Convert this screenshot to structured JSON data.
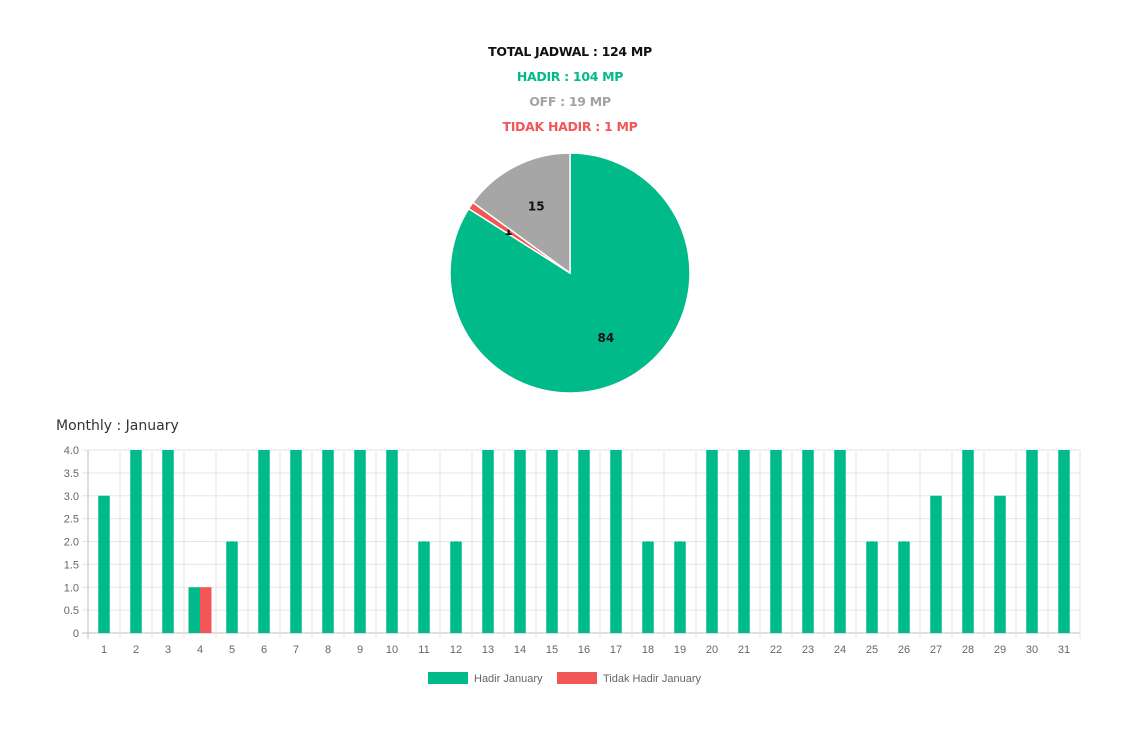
{
  "summary": {
    "total": "TOTAL JADWAL : 124 MP",
    "hadir": "HADIR : 104 MP",
    "off": "OFF : 19 MP",
    "tidak_hadir": "TIDAK HADIR : 1 MP"
  },
  "colors": {
    "hadir": "#00ba8a",
    "off": "#a6a6a6",
    "tidak_hadir": "#f35656"
  },
  "monthly_title": "Monthly : January",
  "chart_data": [
    {
      "type": "pie",
      "labels": [
        "Hadir",
        "Tidak Hadir",
        "Off"
      ],
      "values": [
        84,
        1,
        15
      ],
      "colors": [
        "#00ba8a",
        "#f35656",
        "#a6a6a6"
      ]
    },
    {
      "type": "bar",
      "categories": [
        "1",
        "2",
        "3",
        "4",
        "5",
        "6",
        "7",
        "8",
        "9",
        "10",
        "11",
        "12",
        "13",
        "14",
        "15",
        "16",
        "17",
        "18",
        "19",
        "20",
        "21",
        "22",
        "23",
        "24",
        "25",
        "26",
        "27",
        "28",
        "29",
        "30",
        "31"
      ],
      "series": [
        {
          "name": "Hadir January",
          "color": "#00ba8a",
          "values": [
            3,
            4,
            4,
            1,
            2,
            4,
            4,
            4,
            4,
            4,
            2,
            2,
            4,
            4,
            4,
            4,
            4,
            2,
            2,
            4,
            4,
            4,
            4,
            4,
            2,
            2,
            3,
            4,
            3,
            4,
            4
          ]
        },
        {
          "name": "Tidak Hadir January",
          "color": "#f35656",
          "values": [
            0,
            0,
            0,
            1,
            0,
            0,
            0,
            0,
            0,
            0,
            0,
            0,
            0,
            0,
            0,
            0,
            0,
            0,
            0,
            0,
            0,
            0,
            0,
            0,
            0,
            0,
            0,
            0,
            0,
            0,
            0
          ]
        }
      ],
      "ylim": [
        0,
        4
      ],
      "yticks": [
        "0",
        "0.5",
        "1.0",
        "1.5",
        "2.0",
        "2.5",
        "3.0",
        "3.5",
        "4.0"
      ],
      "grid": true,
      "legend": "bottom"
    }
  ]
}
